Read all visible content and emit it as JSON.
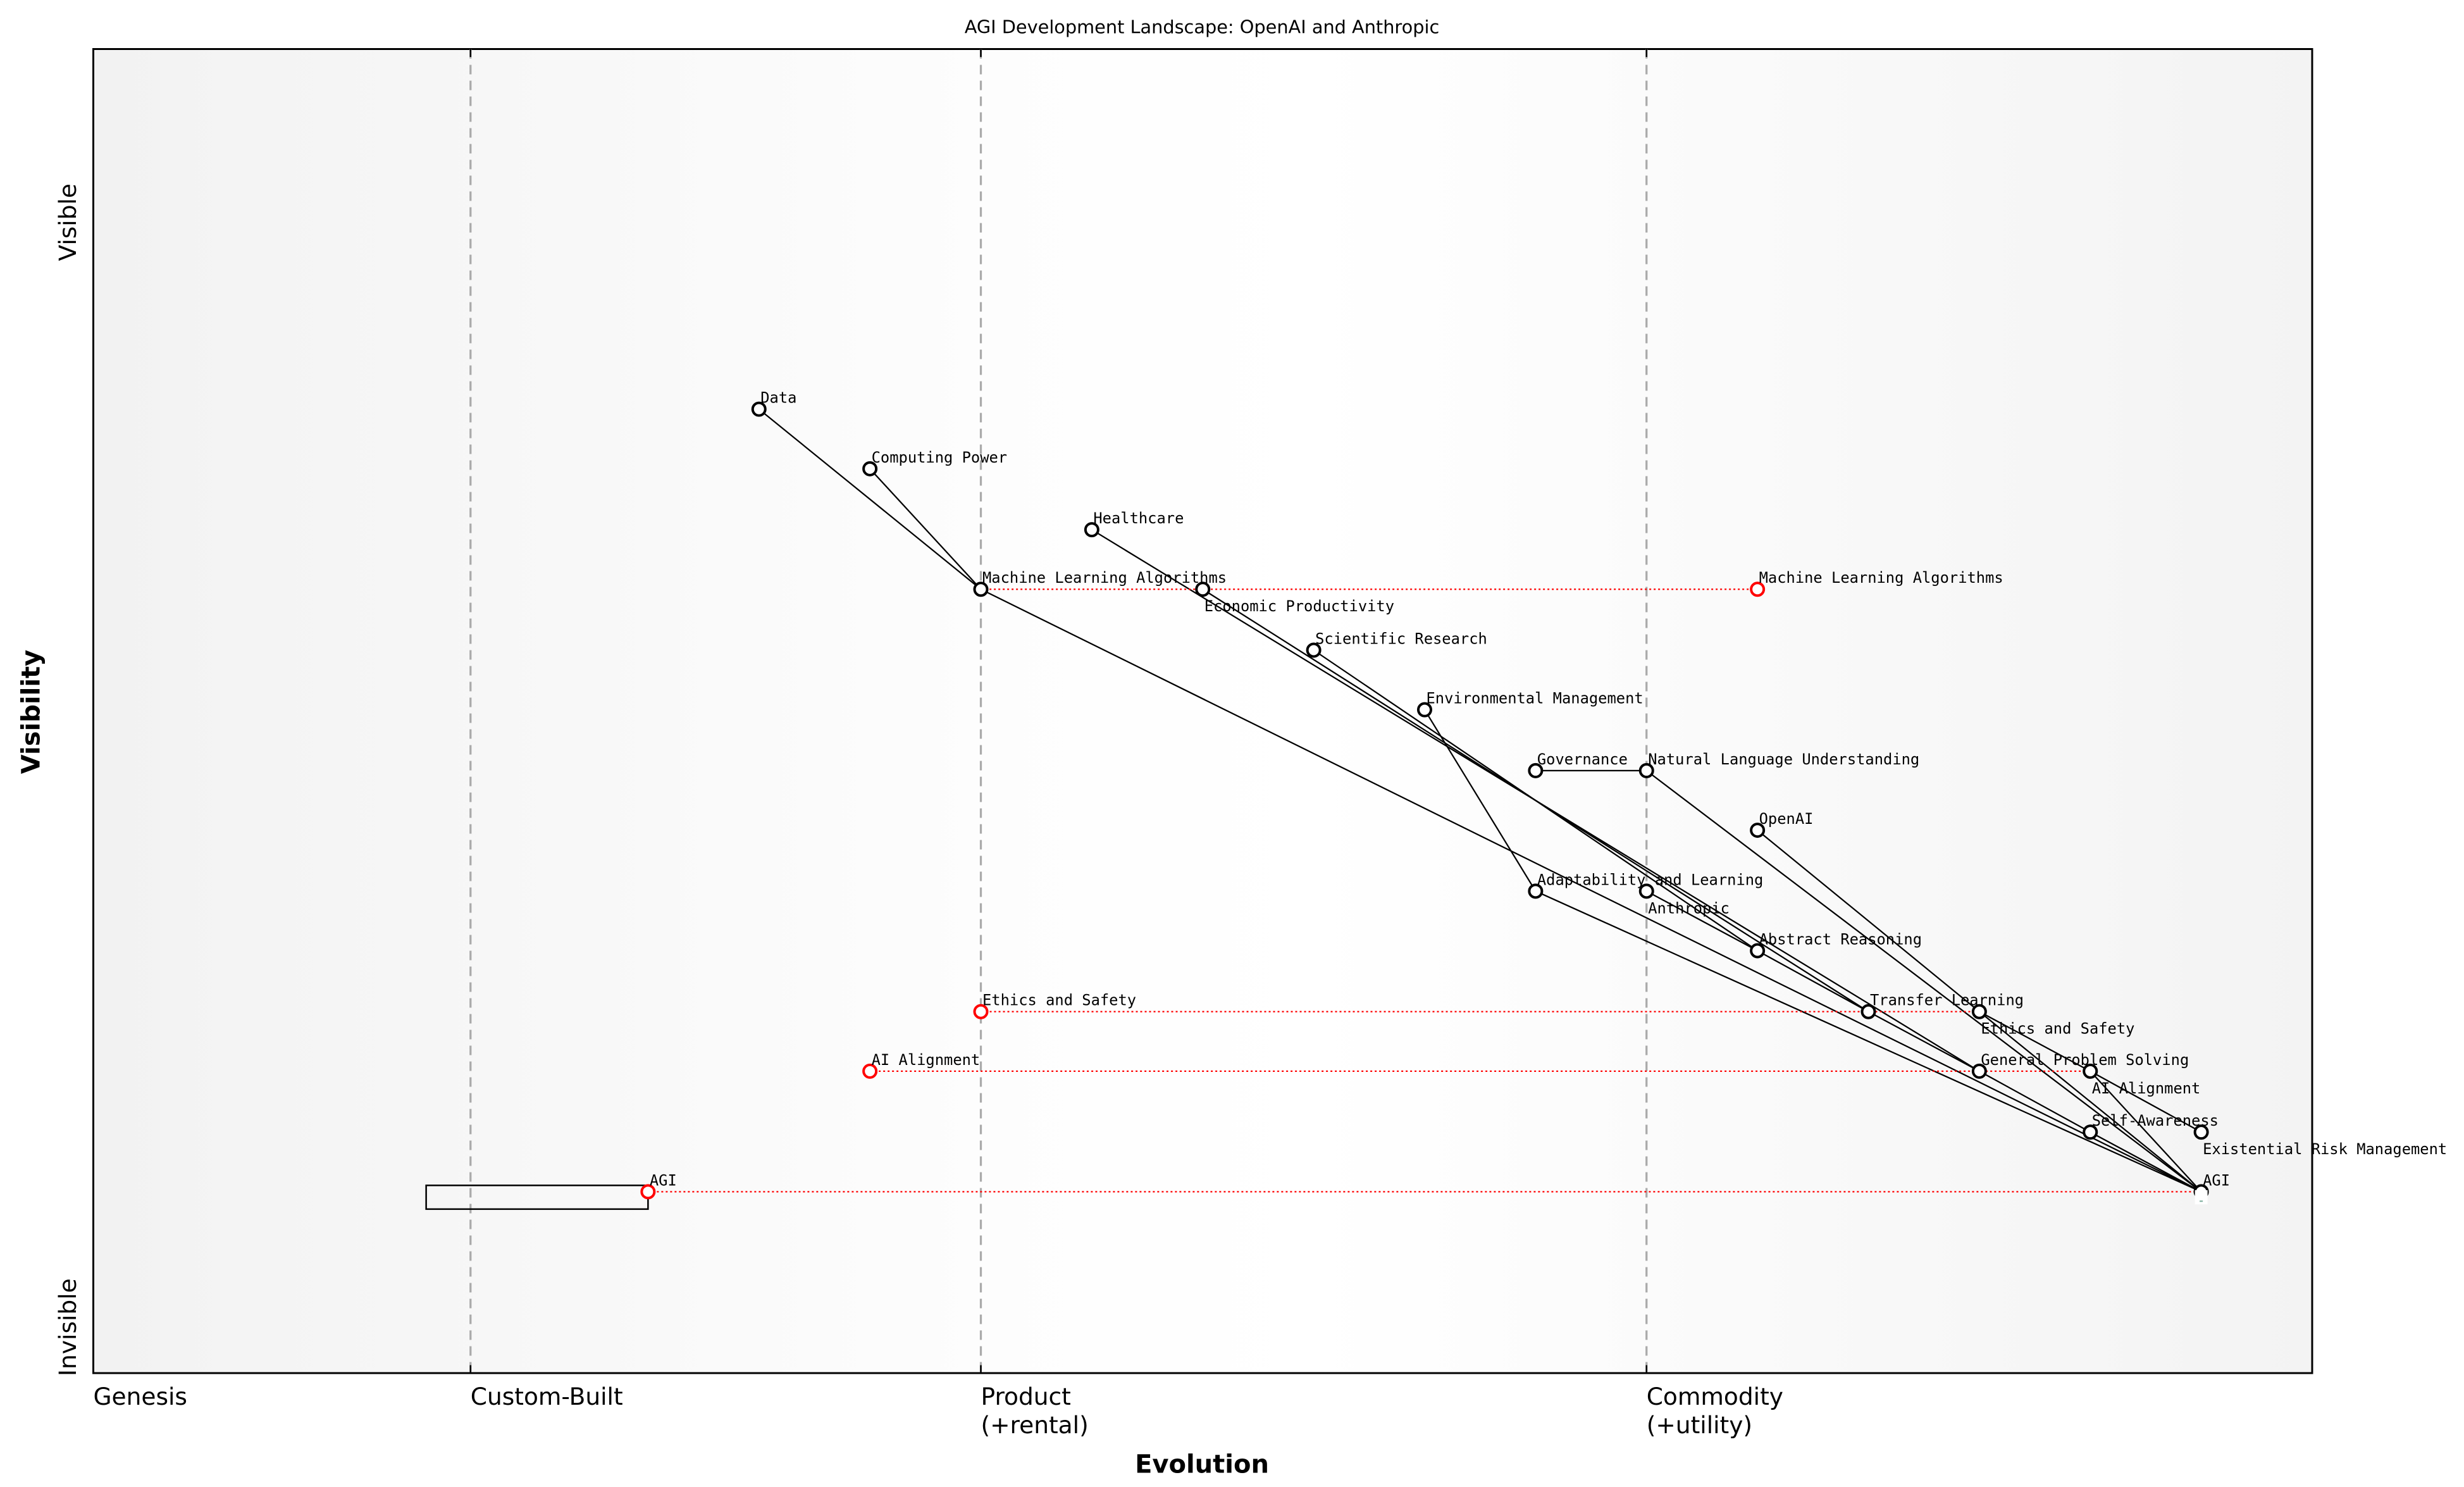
{
  "title": "AGI Development Landscape: OpenAI and Anthropic",
  "axes": {
    "x_label": "Evolution",
    "y_label": "Visibility",
    "y_top": "Visible",
    "y_bottom": "Invisible",
    "stages": [
      {
        "label": "Genesis",
        "evolution": 0.0
      },
      {
        "label": "Custom-Built",
        "evolution": 0.17
      },
      {
        "label": "Product\n(+rental)",
        "evolution": 0.4
      },
      {
        "label": "Commodity\n(+utility)",
        "evolution": 0.7
      }
    ]
  },
  "colors": {
    "node": "#000000",
    "evolve": "#ff0000",
    "stage_line": "#aaaaaa",
    "edge": "#000000"
  },
  "components": [
    {
      "id": "data",
      "label": "Data",
      "evolution": 0.3,
      "visibility": 0.728
    },
    {
      "id": "cp",
      "label": "Computing Power",
      "evolution": 0.35,
      "visibility": 0.683
    },
    {
      "id": "health",
      "label": "Healthcare",
      "evolution": 0.45,
      "visibility": 0.637
    },
    {
      "id": "mla",
      "label": "Machine Learning Algorithms",
      "evolution": 0.4,
      "visibility": 0.592
    },
    {
      "id": "econ",
      "label": "Economic Productivity",
      "evolution": 0.5,
      "visibility": 0.592
    },
    {
      "id": "sci",
      "label": "Scientific Research",
      "evolution": 0.55,
      "visibility": 0.546
    },
    {
      "id": "env",
      "label": "Environmental Management",
      "evolution": 0.6,
      "visibility": 0.501
    },
    {
      "id": "gov",
      "label": "Governance",
      "evolution": 0.65,
      "visibility": 0.455
    },
    {
      "id": "nlu",
      "label": "Natural Language Understanding",
      "evolution": 0.7,
      "visibility": 0.455
    },
    {
      "id": "openai",
      "label": "OpenAI",
      "evolution": 0.75,
      "visibility": 0.41
    },
    {
      "id": "adapt",
      "label": "Adaptability and Learning",
      "evolution": 0.65,
      "visibility": 0.364
    },
    {
      "id": "anthropic",
      "label": "Anthropic",
      "evolution": 0.7,
      "visibility": 0.364
    },
    {
      "id": "abstract",
      "label": "Abstract Reasoning",
      "evolution": 0.75,
      "visibility": 0.319
    },
    {
      "id": "transfer",
      "label": "Transfer Learning",
      "evolution": 0.8,
      "visibility": 0.273
    },
    {
      "id": "ethics",
      "label": "Ethics and Safety",
      "evolution": 0.85,
      "visibility": 0.273
    },
    {
      "id": "gps",
      "label": "General Problem Solving",
      "evolution": 0.85,
      "visibility": 0.228
    },
    {
      "id": "align",
      "label": "AI Alignment",
      "evolution": 0.9,
      "visibility": 0.228
    },
    {
      "id": "self",
      "label": "Self-Awareness",
      "evolution": 0.9,
      "visibility": 0.182
    },
    {
      "id": "risk",
      "label": "Existential Risk Management",
      "evolution": 0.95,
      "visibility": 0.182
    },
    {
      "id": "agi",
      "label": "AGI",
      "evolution": 0.95,
      "visibility": 0.137
    }
  ],
  "links": [
    [
      "data",
      "mla"
    ],
    [
      "cp",
      "mla"
    ],
    [
      "mla",
      "agi"
    ],
    [
      "health",
      "gps"
    ],
    [
      "econ",
      "transfer"
    ],
    [
      "sci",
      "abstract"
    ],
    [
      "env",
      "adapt"
    ],
    [
      "gov",
      "nlu"
    ],
    [
      "nlu",
      "agi"
    ],
    [
      "openai",
      "ethics"
    ],
    [
      "adapt",
      "agi"
    ],
    [
      "anthropic",
      "abstract"
    ],
    [
      "abstract",
      "transfer"
    ],
    [
      "transfer",
      "gps"
    ],
    [
      "gps",
      "self"
    ],
    [
      "self",
      "agi"
    ],
    [
      "ethics",
      "align"
    ],
    [
      "ethics",
      "agi"
    ],
    [
      "align",
      "risk"
    ],
    [
      "align",
      "agi"
    ]
  ],
  "evolve": [
    {
      "label": "Machine Learning Algorithms",
      "from": "mla",
      "evolution": 0.75
    },
    {
      "label": "Ethics and Safety",
      "from": "ethics",
      "evolution": 0.4
    },
    {
      "label": "AI Alignment",
      "from": "align",
      "evolution": 0.35
    },
    {
      "label": "AGI",
      "from": "agi",
      "evolution": 0.25
    }
  ],
  "pipelines": [
    {
      "component": "agi",
      "start": 0.15,
      "end": 0.25
    }
  ]
}
